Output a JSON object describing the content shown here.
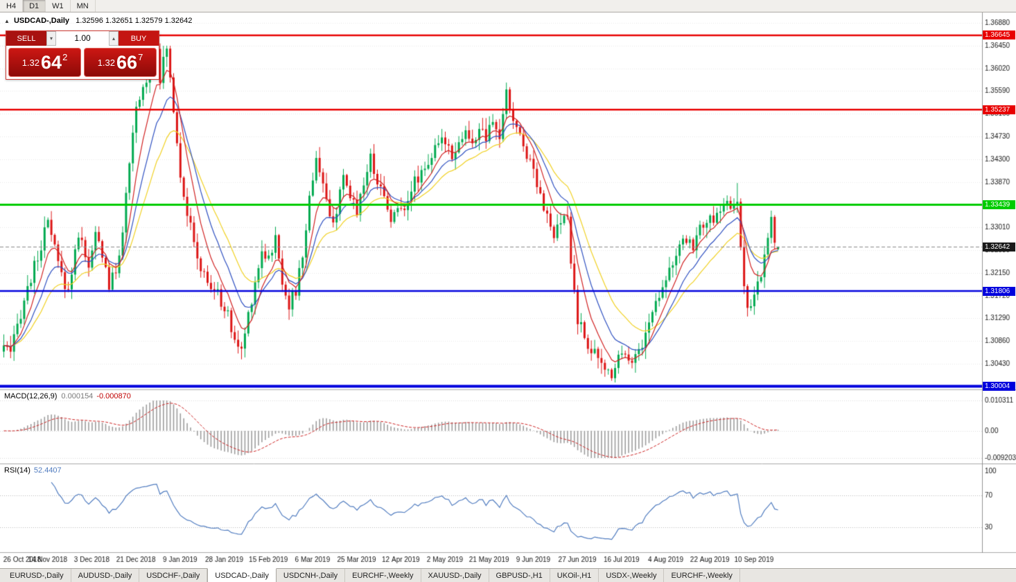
{
  "toolbar": {
    "timeframes": [
      "H4",
      "D1",
      "W1",
      "MN"
    ],
    "active": "D1"
  },
  "icons": {
    "collapse_arrow": "▲",
    "volume_up": "▴",
    "volume_down": "▾"
  },
  "chart_header": {
    "symbol": "USDCAD-,Daily",
    "ohlc_text": "1.32596 1.32651 1.32579 1.32642"
  },
  "trade_panel": {
    "sell_label": "SELL",
    "buy_label": "BUY",
    "volume": "1.00",
    "sell_price_small": "1.32",
    "sell_price_big": "64",
    "sell_price_sup": "2",
    "buy_price_small": "1.32",
    "buy_price_big": "66",
    "buy_price_sup": "7"
  },
  "indicators": {
    "macd": {
      "name": "MACD(12,26,9)",
      "main_value": "0.000154",
      "signal_value": "-0.000870",
      "params": [
        12,
        26,
        9
      ],
      "axis": [
        {
          "v": 0.010311,
          "label": "0.010311"
        },
        {
          "v": 0,
          "label": "0.00"
        },
        {
          "v": -0.009203,
          "label": "-0.009203"
        }
      ]
    },
    "rsi": {
      "name": "RSI(14)",
      "value": "52.4407",
      "period": 14,
      "levels": [
        70,
        30
      ],
      "axis": [
        {
          "v": 100,
          "label": "100"
        },
        {
          "v": 70,
          "label": "70"
        },
        {
          "v": 30,
          "label": "30"
        }
      ]
    }
  },
  "tabs": {
    "active_index": 3,
    "items": [
      "EURUSD-,Daily",
      "AUDUSD-,Daily",
      "USDCHF-,Daily",
      "USDCAD-,Daily",
      "USDCNH-,Daily",
      "EURCHF-,Weekly",
      "XAUUSD-,Daily",
      "GBPUSD-,H1",
      "UKOil-,H1",
      "USDX-,Weekly",
      "EURCHF-,Weekly"
    ]
  },
  "chart_data": {
    "type": "candlestick",
    "symbol": "USDCAD",
    "timeframe": "Daily",
    "bars_total": 229,
    "up_color": "#00a94f",
    "down_color": "#dc1414",
    "price_axis": {
      "max": 1.3688,
      "min": 1.30004,
      "ticks": [
        "1.36880",
        "1.36450",
        "1.36020",
        "1.35590",
        "1.35160",
        "1.34730",
        "1.34300",
        "1.33870",
        "1.33440",
        "1.33010",
        "1.32580",
        "1.32150",
        "1.31720",
        "1.31290",
        "1.30860",
        "1.30430",
        "1.30000"
      ]
    },
    "levels": [
      {
        "price": 1.36645,
        "label": "1.36645",
        "color": "#e80000",
        "width": 2.5
      },
      {
        "price": 1.35237,
        "label": "1.35237",
        "color": "#e80000",
        "width": 2.5
      },
      {
        "price": 1.33439,
        "label": "1.33439",
        "color": "#00cc00",
        "width": 3
      },
      {
        "price": 1.31806,
        "label": "1.31806",
        "color": "#0000dd",
        "width": 2.5
      },
      {
        "price": 1.30004,
        "label": "1.30004",
        "color": "#0000dd",
        "width": 4
      }
    ],
    "bid_line": {
      "price": 1.32642,
      "label": "1.32642",
      "badge_color": "#1a1a1a",
      "line_color": "#888888"
    },
    "last_bar": {
      "open": 1.32596,
      "high": 1.32651,
      "low": 1.32579,
      "close": 1.32642
    },
    "moving_averages": [
      {
        "type": "ema",
        "period": 22,
        "color": "#f0d020"
      },
      {
        "type": "ema",
        "period": 13,
        "color": "#2d4fc0"
      },
      {
        "type": "ema",
        "period": 7,
        "color": "#d02020"
      }
    ],
    "x_axis_labels": [
      {
        "day": 0,
        "text": "26 Oct 2018"
      },
      {
        "day": 13,
        "text": "14 Nov 2018"
      },
      {
        "day": 26,
        "text": "3 Dec 2018"
      },
      {
        "day": 39,
        "text": "21 Dec 2018"
      },
      {
        "day": 52,
        "text": "9 Jan 2019"
      },
      {
        "day": 65,
        "text": "28 Jan 2019"
      },
      {
        "day": 78,
        "text": "15 Feb 2019"
      },
      {
        "day": 91,
        "text": "6 Mar 2019"
      },
      {
        "day": 104,
        "text": "25 Mar 2019"
      },
      {
        "day": 117,
        "text": "12 Apr 2019"
      },
      {
        "day": 130,
        "text": "2 May 2019"
      },
      {
        "day": 143,
        "text": "21 May 2019"
      },
      {
        "day": 156,
        "text": "9 Jun 2019"
      },
      {
        "day": 169,
        "text": "27 Jun 2019"
      },
      {
        "day": 182,
        "text": "16 Jul 2019"
      },
      {
        "day": 195,
        "text": "4 Aug 2019"
      },
      {
        "day": 208,
        "text": "22 Aug 2019"
      },
      {
        "day": 221,
        "text": "10 Sep 2019"
      }
    ],
    "price_keypoints": [
      [
        0,
        1.3078
      ],
      [
        2,
        1.3058
      ],
      [
        4,
        1.3115
      ],
      [
        6,
        1.3165
      ],
      [
        8,
        1.3205
      ],
      [
        10,
        1.3245
      ],
      [
        13,
        1.331
      ],
      [
        15,
        1.3258
      ],
      [
        17,
        1.3208
      ],
      [
        19,
        1.318
      ],
      [
        21,
        1.3262
      ],
      [
        23,
        1.3285
      ],
      [
        25,
        1.3218
      ],
      [
        27,
        1.3288
      ],
      [
        29,
        1.3252
      ],
      [
        31,
        1.3192
      ],
      [
        33,
        1.3215
      ],
      [
        35,
        1.3298
      ],
      [
        37,
        1.3415
      ],
      [
        39,
        1.3525
      ],
      [
        41,
        1.3562
      ],
      [
        43,
        1.3608
      ],
      [
        45,
        1.365
      ],
      [
        46,
        1.3585
      ],
      [
        48,
        1.364
      ],
      [
        50,
        1.3528
      ],
      [
        52,
        1.3405
      ],
      [
        54,
        1.333
      ],
      [
        56,
        1.3268
      ],
      [
        58,
        1.3222
      ],
      [
        60,
        1.3196
      ],
      [
        62,
        1.3182
      ],
      [
        64,
        1.3162
      ],
      [
        66,
        1.3132
      ],
      [
        68,
        1.3088
      ],
      [
        70,
        1.3065
      ],
      [
        72,
        1.3138
      ],
      [
        74,
        1.3198
      ],
      [
        76,
        1.3258
      ],
      [
        78,
        1.3244
      ],
      [
        80,
        1.3278
      ],
      [
        82,
        1.3202
      ],
      [
        84,
        1.3156
      ],
      [
        86,
        1.318
      ],
      [
        88,
        1.3248
      ],
      [
        90,
        1.3355
      ],
      [
        92,
        1.3438
      ],
      [
        94,
        1.3382
      ],
      [
        96,
        1.3312
      ],
      [
        98,
        1.3332
      ],
      [
        100,
        1.3388
      ],
      [
        102,
        1.336
      ],
      [
        104,
        1.3336
      ],
      [
        106,
        1.3388
      ],
      [
        108,
        1.3432
      ],
      [
        110,
        1.3392
      ],
      [
        112,
        1.3358
      ],
      [
        114,
        1.3322
      ],
      [
        116,
        1.333
      ],
      [
        118,
        1.3346
      ],
      [
        120,
        1.3374
      ],
      [
        122,
        1.3398
      ],
      [
        124,
        1.3418
      ],
      [
        126,
        1.3436
      ],
      [
        128,
        1.3455
      ],
      [
        130,
        1.3468
      ],
      [
        132,
        1.3442
      ],
      [
        134,
        1.3462
      ],
      [
        136,
        1.3484
      ],
      [
        138,
        1.3452
      ],
      [
        140,
        1.3492
      ],
      [
        142,
        1.3466
      ],
      [
        144,
        1.3498
      ],
      [
        146,
        1.3472
      ],
      [
        148,
        1.3552
      ],
      [
        150,
        1.3506
      ],
      [
        152,
        1.3472
      ],
      [
        154,
        1.3442
      ],
      [
        156,
        1.3412
      ],
      [
        158,
        1.3368
      ],
      [
        160,
        1.3318
      ],
      [
        162,
        1.3282
      ],
      [
        164,
        1.3308
      ],
      [
        166,
        1.3322
      ],
      [
        167,
        1.3232
      ],
      [
        169,
        1.3128
      ],
      [
        171,
        1.3092
      ],
      [
        173,
        1.3072
      ],
      [
        175,
        1.3048
      ],
      [
        177,
        1.3032
      ],
      [
        179,
        1.3026
      ],
      [
        181,
        1.3058
      ],
      [
        183,
        1.3072
      ],
      [
        185,
        1.3046
      ],
      [
        187,
        1.3068
      ],
      [
        189,
        1.3098
      ],
      [
        191,
        1.3142
      ],
      [
        193,
        1.3178
      ],
      [
        195,
        1.3212
      ],
      [
        197,
        1.3234
      ],
      [
        199,
        1.3258
      ],
      [
        201,
        1.3278
      ],
      [
        203,
        1.3268
      ],
      [
        205,
        1.3298
      ],
      [
        207,
        1.3318
      ],
      [
        209,
        1.3304
      ],
      [
        211,
        1.3338
      ],
      [
        213,
        1.3348
      ],
      [
        215,
        1.3332
      ],
      [
        216,
        1.3352
      ],
      [
        217,
        1.3252
      ],
      [
        218,
        1.3198
      ],
      [
        219,
        1.3142
      ],
      [
        220,
        1.3152
      ],
      [
        221,
        1.3165
      ],
      [
        222,
        1.319
      ],
      [
        223,
        1.3212
      ],
      [
        224,
        1.324
      ],
      [
        225,
        1.3292
      ],
      [
        226,
        1.3318
      ],
      [
        227,
        1.3268
      ],
      [
        228,
        1.32642
      ]
    ],
    "anchor_highs": [
      [
        45,
        1.36655
      ],
      [
        148,
        1.3565
      ],
      [
        216,
        1.3385
      ]
    ],
    "anchor_lows": [
      [
        70,
        1.3058
      ],
      [
        179,
        1.3017
      ],
      [
        219,
        1.3135
      ]
    ]
  }
}
